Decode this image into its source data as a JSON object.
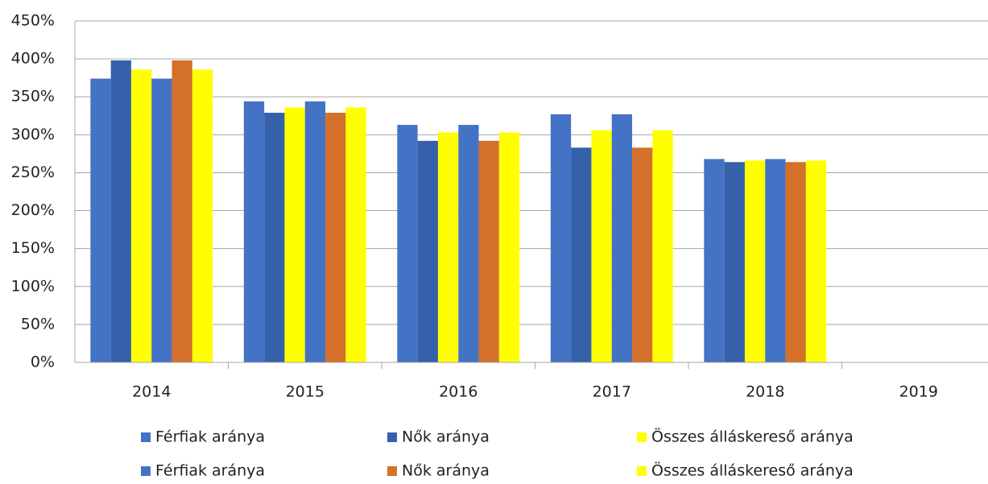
{
  "chart_data": {
    "type": "bar",
    "categories": [
      "2014",
      "2015",
      "2016",
      "2017",
      "2018",
      "2019"
    ],
    "series": [
      {
        "name": "Férfiak aránya",
        "color": "#4472c4",
        "values": [
          374,
          344,
          313,
          327,
          268,
          null
        ]
      },
      {
        "name": "Nők aránya",
        "color": "#3561ab",
        "values": [
          398,
          329,
          292,
          283,
          264,
          null
        ]
      },
      {
        "name": "Összes álláskereső aránya",
        "color": "#ffff00",
        "values": [
          386,
          336,
          303,
          306,
          266,
          null
        ]
      },
      {
        "name": "Férfiak aránya",
        "color": "#4472c4",
        "values": [
          374,
          344,
          313,
          327,
          268,
          null
        ]
      },
      {
        "name": "Nők aránya",
        "color": "#d4702a",
        "values": [
          398,
          329,
          292,
          283,
          264,
          null
        ]
      },
      {
        "name": "Összes álláskereső aránya",
        "color": "#ffff00",
        "values": [
          386,
          336,
          303,
          306,
          266,
          null
        ]
      }
    ],
    "ylim": [
      0,
      450
    ],
    "yticks": [
      {
        "value": 0,
        "label": "0%"
      },
      {
        "value": 50,
        "label": "50%"
      },
      {
        "value": 100,
        "label": "100%"
      },
      {
        "value": 150,
        "label": "150%"
      },
      {
        "value": 200,
        "label": "200%"
      },
      {
        "value": 250,
        "label": "250%"
      },
      {
        "value": 300,
        "label": "300%"
      },
      {
        "value": 350,
        "label": "350%"
      },
      {
        "value": 400,
        "label": "400%"
      },
      {
        "value": 450,
        "label": "450%"
      }
    ],
    "grid": true,
    "legend": "bottom"
  }
}
